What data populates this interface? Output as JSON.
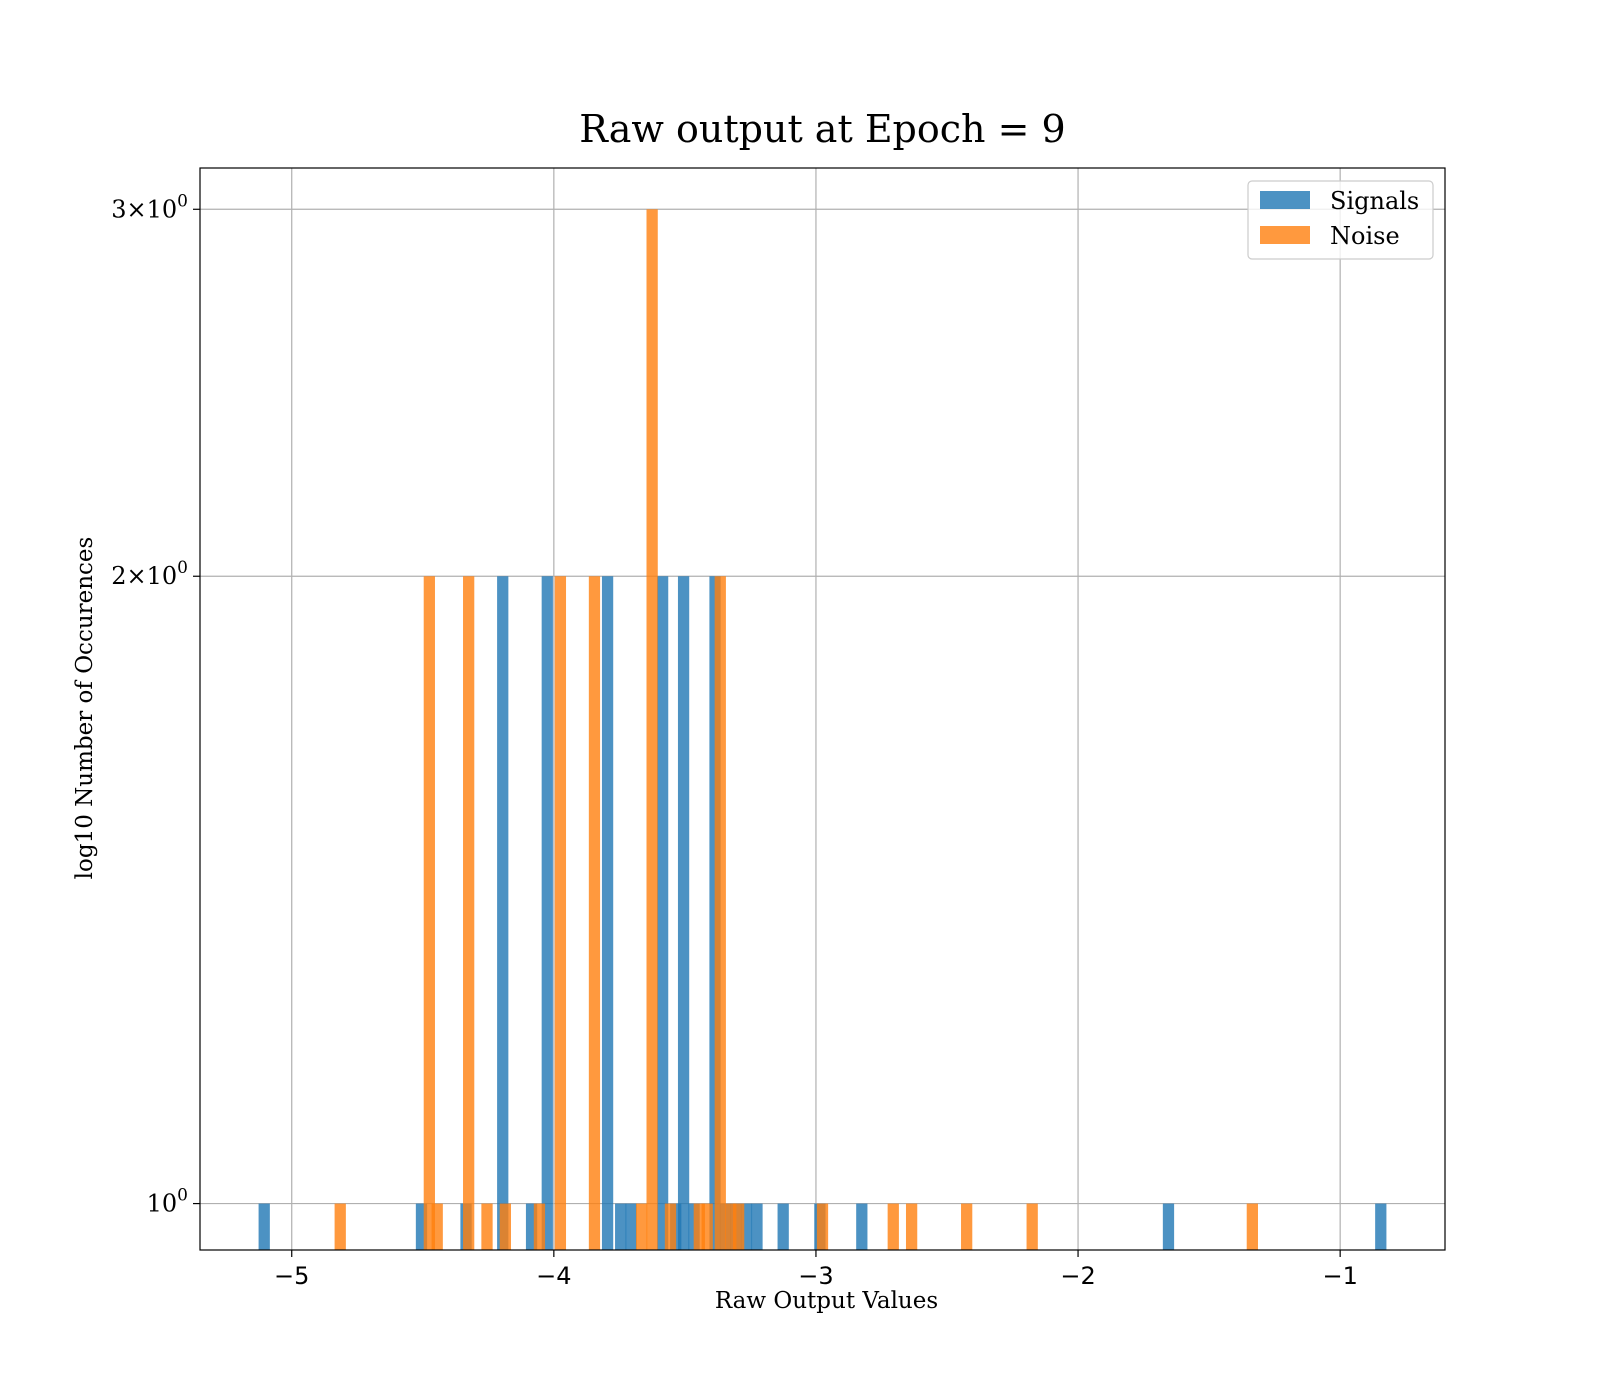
{
  "chart_data": {
    "type": "bar",
    "title": "Raw output at Epoch = 9",
    "xlabel": "Raw Output Values",
    "ylabel": "log10 Number of Occurences",
    "xlim": [
      -5.35,
      -0.6
    ],
    "ylim": [
      0.95,
      3.14
    ],
    "yscale": "log",
    "grid": true,
    "legend_position": "upper-right",
    "xticks": [
      {
        "value": -5,
        "label": "−5"
      },
      {
        "value": -4,
        "label": "−4"
      },
      {
        "value": -3,
        "label": "−3"
      },
      {
        "value": -2,
        "label": "−2"
      },
      {
        "value": -1,
        "label": "−1"
      }
    ],
    "yticks": [
      {
        "value": 1,
        "base": "10",
        "exp": "0"
      },
      {
        "value": 2,
        "base": "2×10",
        "exp": "0"
      },
      {
        "value": 3,
        "base": "3×10",
        "exp": "0"
      }
    ],
    "bin_width": 0.043,
    "series": [
      {
        "name": "Signals",
        "color": "#1f77b4",
        "opacity": 0.8,
        "bins": [
          {
            "x": -5.105,
            "count": 1
          },
          {
            "x": -4.505,
            "count": 1
          },
          {
            "x": -4.335,
            "count": 1
          },
          {
            "x": -4.195,
            "count": 2
          },
          {
            "x": -4.085,
            "count": 1
          },
          {
            "x": -4.025,
            "count": 2
          },
          {
            "x": -3.795,
            "count": 2
          },
          {
            "x": -3.745,
            "count": 1
          },
          {
            "x": -3.705,
            "count": 1
          },
          {
            "x": -3.585,
            "count": 2
          },
          {
            "x": -3.535,
            "count": 1
          },
          {
            "x": -3.505,
            "count": 2
          },
          {
            "x": -3.465,
            "count": 1
          },
          {
            "x": -3.385,
            "count": 2
          },
          {
            "x": -3.345,
            "count": 1
          },
          {
            "x": -3.305,
            "count": 1
          },
          {
            "x": -3.265,
            "count": 1
          },
          {
            "x": -3.225,
            "count": 1
          },
          {
            "x": -3.125,
            "count": 1
          },
          {
            "x": -2.985,
            "count": 1
          },
          {
            "x": -2.825,
            "count": 1
          },
          {
            "x": -1.655,
            "count": 1
          },
          {
            "x": -0.845,
            "count": 1
          }
        ]
      },
      {
        "name": "Noise",
        "color": "#ff7f0e",
        "opacity": 0.8,
        "bins": [
          {
            "x": -4.815,
            "count": 1
          },
          {
            "x": -4.475,
            "count": 2
          },
          {
            "x": -4.445,
            "count": 1
          },
          {
            "x": -4.325,
            "count": 2
          },
          {
            "x": -4.255,
            "count": 1
          },
          {
            "x": -4.185,
            "count": 1
          },
          {
            "x": -4.055,
            "count": 1
          },
          {
            "x": -3.975,
            "count": 2
          },
          {
            "x": -3.845,
            "count": 2
          },
          {
            "x": -3.665,
            "count": 1
          },
          {
            "x": -3.625,
            "count": 3
          },
          {
            "x": -3.555,
            "count": 1
          },
          {
            "x": -3.445,
            "count": 1
          },
          {
            "x": -3.415,
            "count": 1
          },
          {
            "x": -3.365,
            "count": 2
          },
          {
            "x": -3.325,
            "count": 1
          },
          {
            "x": -3.295,
            "count": 1
          },
          {
            "x": -2.975,
            "count": 1
          },
          {
            "x": -2.705,
            "count": 1
          },
          {
            "x": -2.635,
            "count": 1
          },
          {
            "x": -2.425,
            "count": 1
          },
          {
            "x": -2.175,
            "count": 1
          },
          {
            "x": -1.335,
            "count": 1
          }
        ]
      }
    ]
  }
}
